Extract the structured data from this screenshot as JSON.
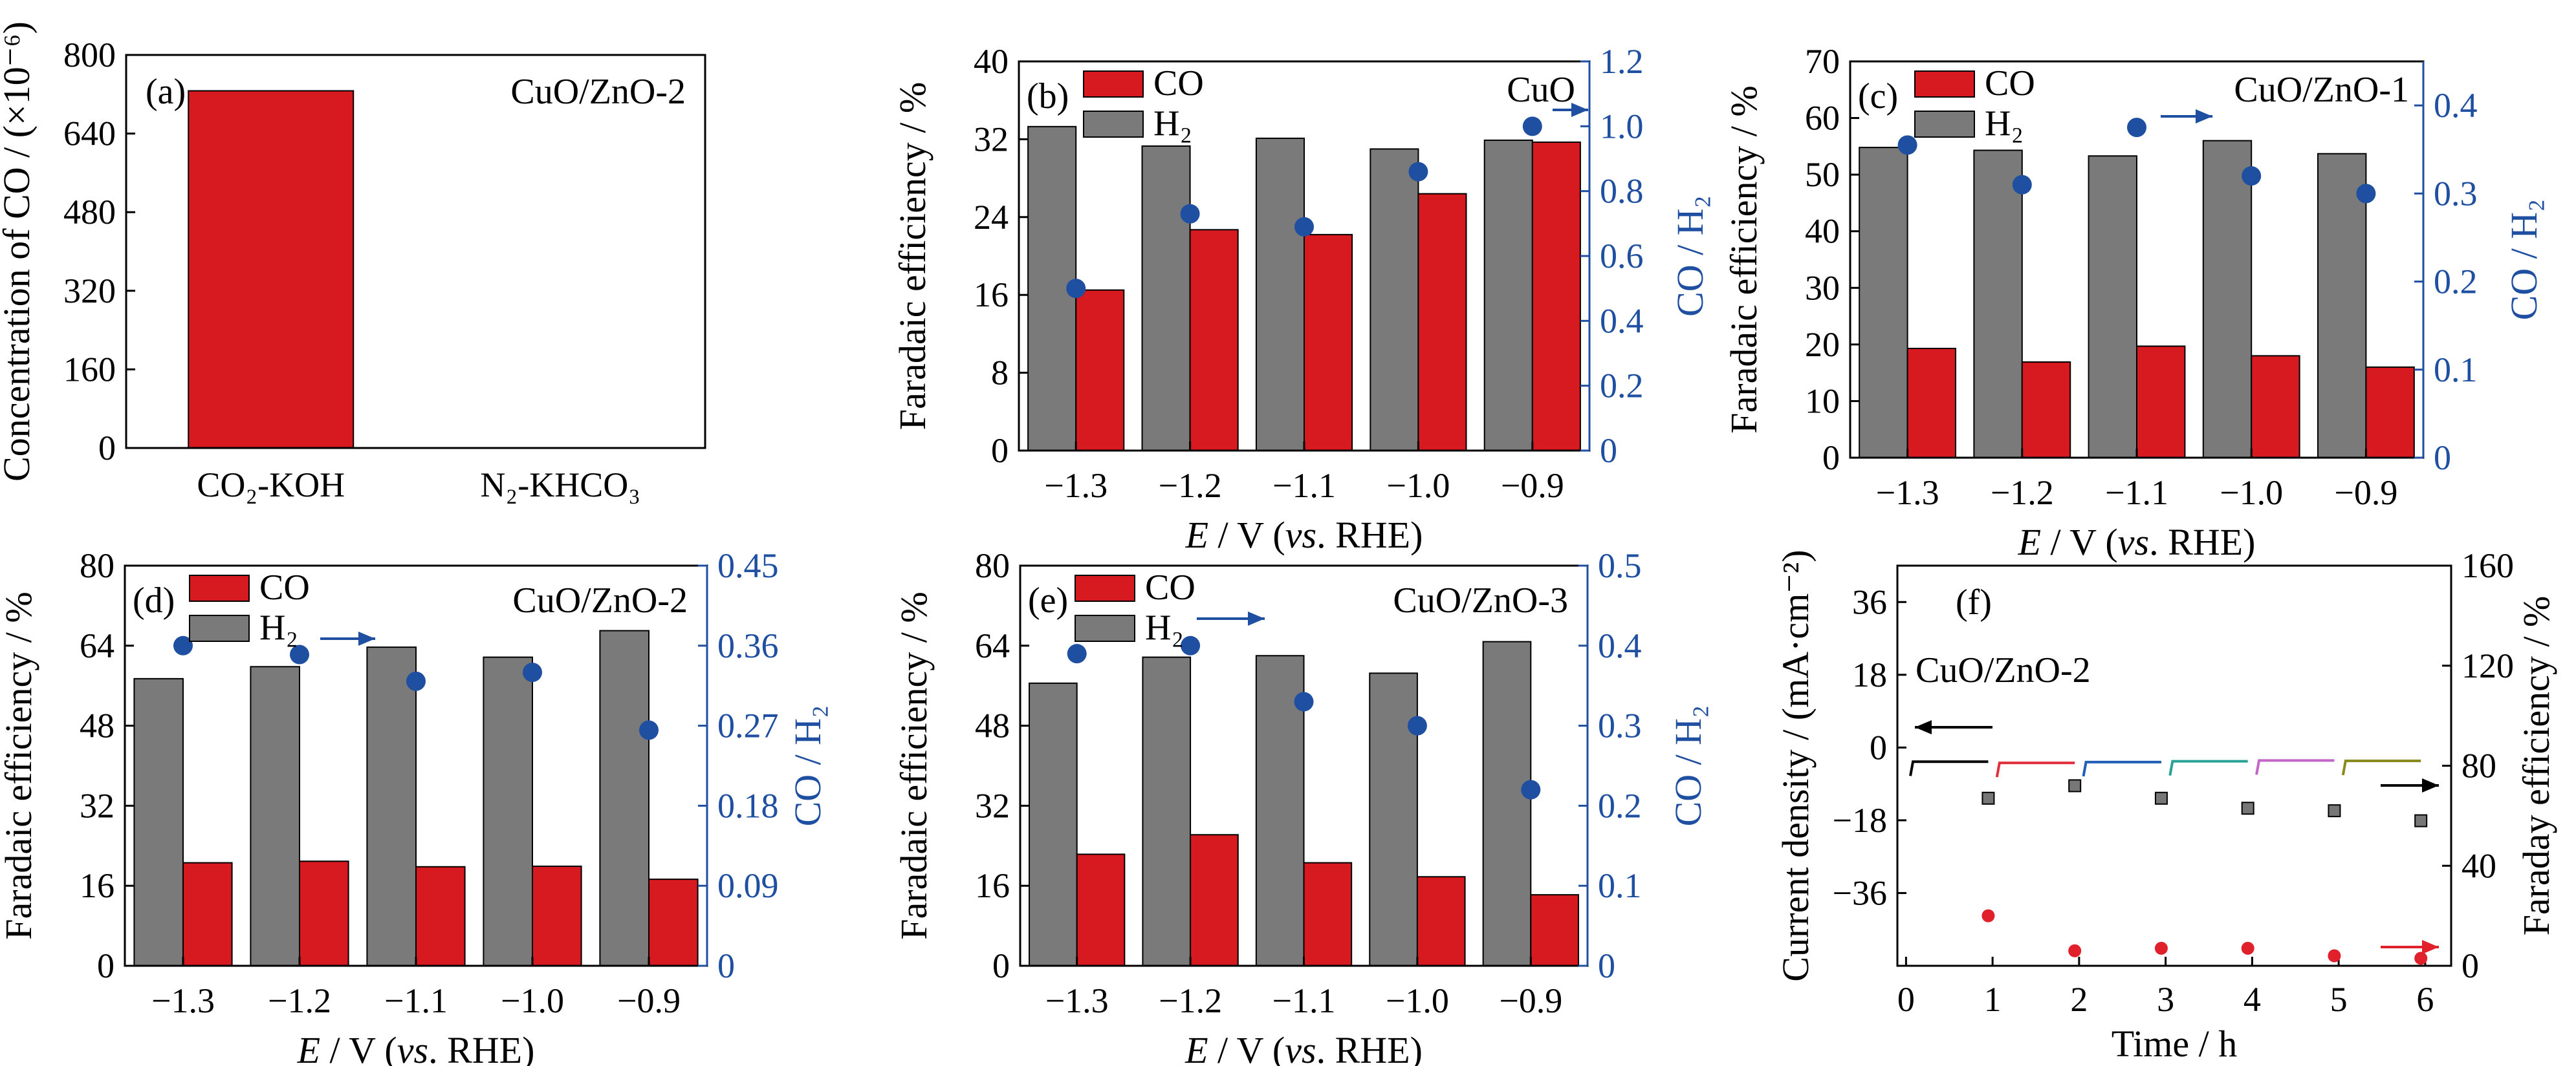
{
  "colors": {
    "co": "#d71920",
    "h2": "#7a7a7a",
    "ratio": "#1f4fa0",
    "bar_edge": "#000000",
    "f_series": [
      "#000000",
      "#e0303c",
      "#1f5fb8",
      "#2aa198",
      "#c266c8",
      "#8a8a1e"
    ],
    "f_square": "#777777",
    "f_red_dot": "#e0202a"
  },
  "chart_data": [
    {
      "id": "a",
      "type": "bar",
      "panel_label": "(a)",
      "title": "CuO/ZnO-2",
      "ylabel": "Concentration of CO / (×10⁻⁶)",
      "ylim": [
        0,
        800
      ],
      "yticks": [
        "0",
        "160",
        "320",
        "480",
        "640",
        "800"
      ],
      "categories": [
        "CO₂-KOH",
        "N₂-KHCO₃"
      ],
      "values": [
        727,
        0
      ]
    },
    {
      "id": "b",
      "type": "bar",
      "panel_label": "(b)",
      "title": "CuO",
      "ylabel": "Faradaic efficiency / %",
      "y2label": "CO / H₂",
      "xlabel_main": "E",
      "xlabel_mid": " / V (",
      "xlabel_vs": "vs",
      "xlabel_end": ". RHE)",
      "ylim": [
        0,
        40
      ],
      "yticks": [
        "0",
        "8",
        "16",
        "24",
        "32",
        "40"
      ],
      "y2lim": [
        0,
        1.2
      ],
      "y2ticks": [
        "0",
        "0.2",
        "0.4",
        "0.6",
        "0.8",
        "1.0",
        "1.2"
      ],
      "categories": [
        "−1.3",
        "−1.2",
        "−1.1",
        "−1.0",
        "−0.9"
      ],
      "legend": [
        "CO",
        "H₂"
      ],
      "series": [
        {
          "name": "H₂",
          "values": [
            33.3,
            31.3,
            32.1,
            31.0,
            31.9
          ]
        },
        {
          "name": "CO",
          "values": [
            16.5,
            22.7,
            22.2,
            26.4,
            31.7
          ]
        }
      ],
      "ratio": [
        0.5,
        0.73,
        0.69,
        0.86,
        1.0
      ]
    },
    {
      "id": "c",
      "type": "bar",
      "panel_label": "(c)",
      "title": "CuO/ZnO-1",
      "ylabel": "Faradaic efficiency / %",
      "y2label": "CO / H₂",
      "xlabel_main": "E",
      "xlabel_mid": " / V (",
      "xlabel_vs": "vs",
      "xlabel_end": ". RHE)",
      "ylim": [
        0,
        70
      ],
      "yticks": [
        "0",
        "10",
        "20",
        "30",
        "40",
        "50",
        "60",
        "70"
      ],
      "y2lim": [
        0,
        0.45
      ],
      "y2ticks": [
        "0",
        "0.1",
        "0.2",
        "0.3",
        "0.4"
      ],
      "categories": [
        "−1.3",
        "−1.2",
        "−1.1",
        "−1.0",
        "−0.9"
      ],
      "legend": [
        "CO",
        "H₂"
      ],
      "series": [
        {
          "name": "H₂",
          "values": [
            54.8,
            54.3,
            53.3,
            56.0,
            53.7
          ]
        },
        {
          "name": "CO",
          "values": [
            19.3,
            16.9,
            19.7,
            18.0,
            16.0
          ]
        }
      ],
      "ratio": [
        0.355,
        0.31,
        0.375,
        0.32,
        0.3
      ]
    },
    {
      "id": "d",
      "type": "bar",
      "panel_label": "(d)",
      "title": "CuO/ZnO-2",
      "ylabel": "Faradaic efficiency / %",
      "y2label": "CO / H₂",
      "xlabel_main": "E",
      "xlabel_mid": " / V (",
      "xlabel_vs": "vs",
      "xlabel_end": ". RHE)",
      "ylim": [
        0,
        80
      ],
      "yticks": [
        "0",
        "16",
        "32",
        "48",
        "64",
        "80"
      ],
      "y2lim": [
        0,
        0.45
      ],
      "y2ticks": [
        "0",
        "0.09",
        "0.18",
        "0.27",
        "0.36",
        "0.45"
      ],
      "categories": [
        "−1.3",
        "−1.2",
        "−1.1",
        "−1.0",
        "−0.9"
      ],
      "legend": [
        "CO",
        "H₂"
      ],
      "series": [
        {
          "name": "H₂",
          "values": [
            57.4,
            59.8,
            63.7,
            61.7,
            67.0
          ]
        },
        {
          "name": "CO",
          "values": [
            20.6,
            20.9,
            19.8,
            19.9,
            17.3
          ]
        }
      ],
      "ratio": [
        0.36,
        0.35,
        0.32,
        0.33,
        0.265
      ]
    },
    {
      "id": "e",
      "type": "bar",
      "panel_label": "(e)",
      "title": "CuO/ZnO-3",
      "ylabel": "Faradaic efficiency / %",
      "y2label": "CO / H₂",
      "xlabel_main": "E",
      "xlabel_mid": " / V (",
      "xlabel_vs": "vs",
      "xlabel_end": ". RHE)",
      "ylim": [
        0,
        80
      ],
      "yticks": [
        "0",
        "16",
        "32",
        "48",
        "64",
        "80"
      ],
      "y2lim": [
        0,
        0.5
      ],
      "y2ticks": [
        "0",
        "0.1",
        "0.2",
        "0.3",
        "0.4",
        "0.5"
      ],
      "categories": [
        "−1.3",
        "−1.2",
        "−1.1",
        "−1.0",
        "−0.9"
      ],
      "legend": [
        "CO",
        "H₂"
      ],
      "series": [
        {
          "name": "H₂",
          "values": [
            56.5,
            61.7,
            62.0,
            58.5,
            64.8
          ]
        },
        {
          "name": "CO",
          "values": [
            22.3,
            26.2,
            20.6,
            17.8,
            14.2
          ]
        }
      ],
      "ratio": [
        0.39,
        0.4,
        0.33,
        0.3,
        0.22
      ]
    },
    {
      "id": "f",
      "type": "scatter",
      "panel_label": "(f)",
      "title": "CuO/ZnO-2",
      "xlabel": "Time / h",
      "ylabel": "Current density / (mA·cm⁻²)",
      "y2label": "Faraday efficiency / %",
      "xlim": [
        -0.1,
        6.3
      ],
      "xticks": [
        "0",
        "1",
        "2",
        "3",
        "4",
        "5",
        "6"
      ],
      "ylim": [
        -54,
        45
      ],
      "yticks": [
        "−36",
        "−18",
        "0",
        "18",
        "36"
      ],
      "y2lim": [
        0,
        160
      ],
      "y2ticks": [
        "0",
        "40",
        "80",
        "120",
        "160"
      ],
      "current_segments": [
        {
          "x": [
            0.05,
            0.95
          ],
          "y": -3.5
        },
        {
          "x": [
            1.05,
            1.95
          ],
          "y": -3.8
        },
        {
          "x": [
            2.05,
            2.95
          ],
          "y": -3.6
        },
        {
          "x": [
            3.05,
            3.95
          ],
          "y": -3.4
        },
        {
          "x": [
            4.05,
            4.95
          ],
          "y": -3.2
        },
        {
          "x": [
            5.05,
            5.95
          ],
          "y": -3.3
        }
      ],
      "fe_h2": {
        "x": [
          0.95,
          1.95,
          2.95,
          3.95,
          4.95,
          5.95
        ],
        "y": [
          67,
          72,
          67,
          63,
          62,
          58
        ]
      },
      "fe_co": {
        "x": [
          0.95,
          1.95,
          2.95,
          3.95,
          4.95,
          5.95
        ],
        "y": [
          20,
          6,
          7,
          7,
          4,
          3
        ]
      }
    }
  ]
}
